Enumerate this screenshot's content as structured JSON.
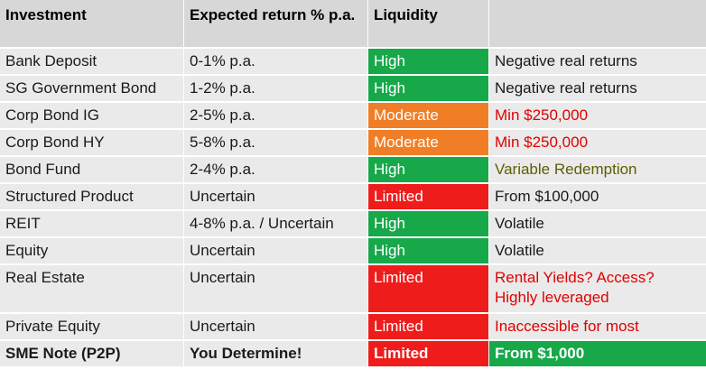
{
  "headers": [
    "Investment",
    "Expected return % p.a.",
    "Liquidity",
    ""
  ],
  "rows": [
    {
      "investment": "Bank Deposit",
      "return": "0-1% p.a.",
      "liquidity": "High",
      "note": "Negative real returns"
    },
    {
      "investment": "SG Government Bond",
      "return": "1-2% p.a.",
      "liquidity": "High",
      "note": "Negative real returns"
    },
    {
      "investment": "Corp Bond IG",
      "return": "2-5% p.a.",
      "liquidity": "Moderate",
      "note": "Min $250,000"
    },
    {
      "investment": "Corp Bond HY",
      "return": "5-8% p.a.",
      "liquidity": "Moderate",
      "note": "Min $250,000"
    },
    {
      "investment": "Bond Fund",
      "return": "2-4% p.a.",
      "liquidity": "High",
      "note": "Variable Redemption"
    },
    {
      "investment": "Structured Product",
      "return": "Uncertain",
      "liquidity": "Limited",
      "note": "From $100,000"
    },
    {
      "investment": "REIT",
      "return": "4-8% p.a. / Uncertain",
      "liquidity": "High",
      "note": "Volatile"
    },
    {
      "investment": "Equity",
      "return": "Uncertain",
      "liquidity": "High",
      "note": "Volatile"
    },
    {
      "investment": "Real Estate",
      "return": "Uncertain",
      "liquidity": "Limited",
      "note": "Rental Yields? Access? Highly leveraged"
    },
    {
      "investment": "Private Equity",
      "return": "Uncertain",
      "liquidity": "Limited",
      "note": "Inaccessible for most"
    },
    {
      "investment": "SME Note (P2P)",
      "return": "You Determine!",
      "liquidity": "Limited",
      "note": "From $1,000"
    }
  ],
  "colors": {
    "high": "#17a84a",
    "moderate": "#f07e26",
    "limited": "#ef1c1c",
    "note_red": "#e10000",
    "note_olive": "#5a6000",
    "header_bg": "#d7d7d7",
    "row_bg": "#eaeaea"
  }
}
